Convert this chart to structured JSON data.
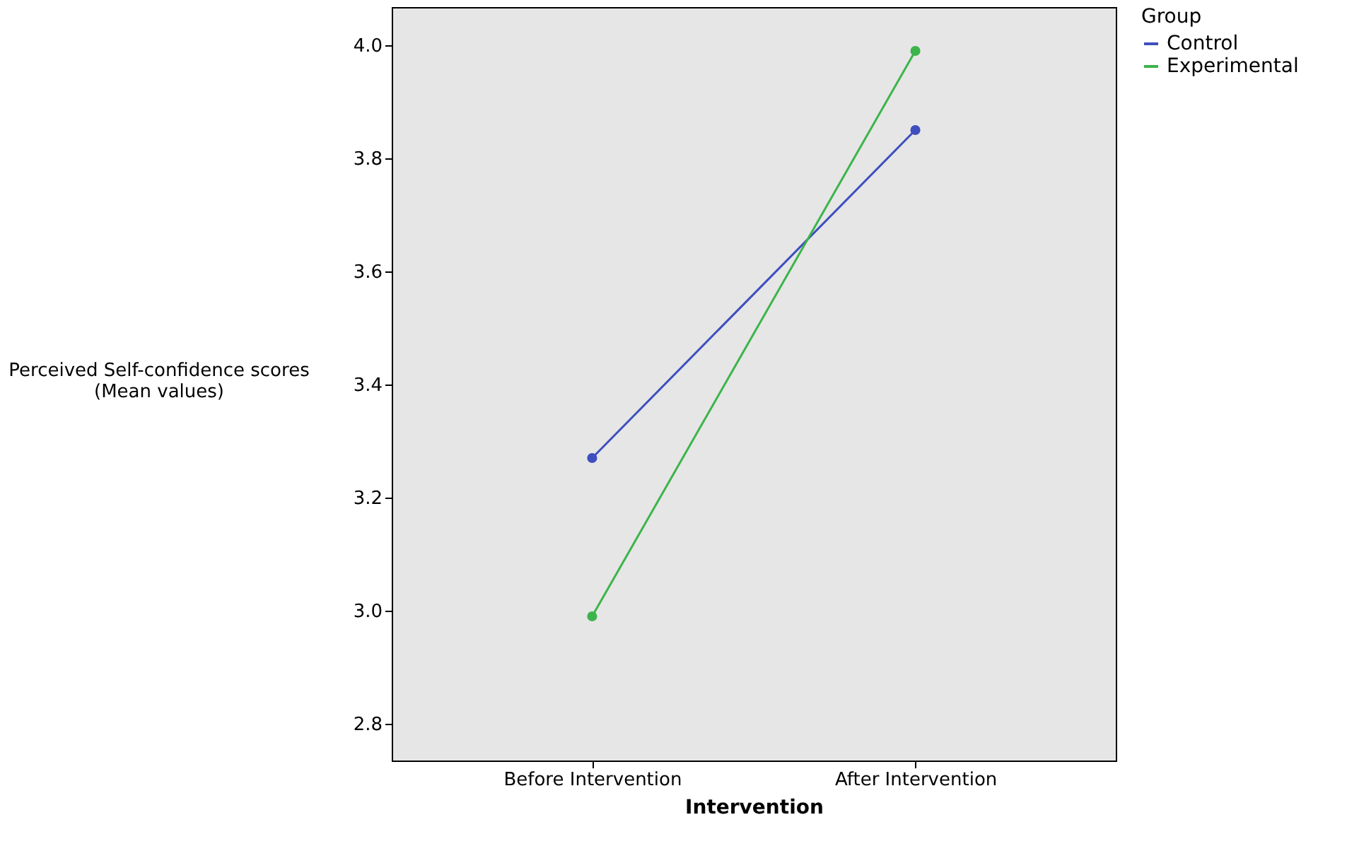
{
  "chart_data": {
    "type": "line",
    "xlabel": "Intervention",
    "ylabel": "Perceived Self-confidence scores\n(Mean values)",
    "legend_title": "Group",
    "categories": [
      "Before Intervention",
      "After Intervention"
    ],
    "series": [
      {
        "name": "Control",
        "color": "#3f4fbf",
        "values": [
          3.27,
          3.85
        ]
      },
      {
        "name": "Experimental",
        "color": "#3cb44b",
        "values": [
          2.99,
          3.99
        ]
      }
    ],
    "ylim": [
      2.735,
      4.0675
    ],
    "yticks": [
      2.8,
      {
        "value": 3,
        "label": "3.0"
      },
      3.2,
      3.4,
      3.6,
      3.8,
      {
        "value": 4,
        "label": "4.0"
      }
    ],
    "grid": false,
    "legend": "top right",
    "marker": "circle",
    "line_style": "solid"
  }
}
